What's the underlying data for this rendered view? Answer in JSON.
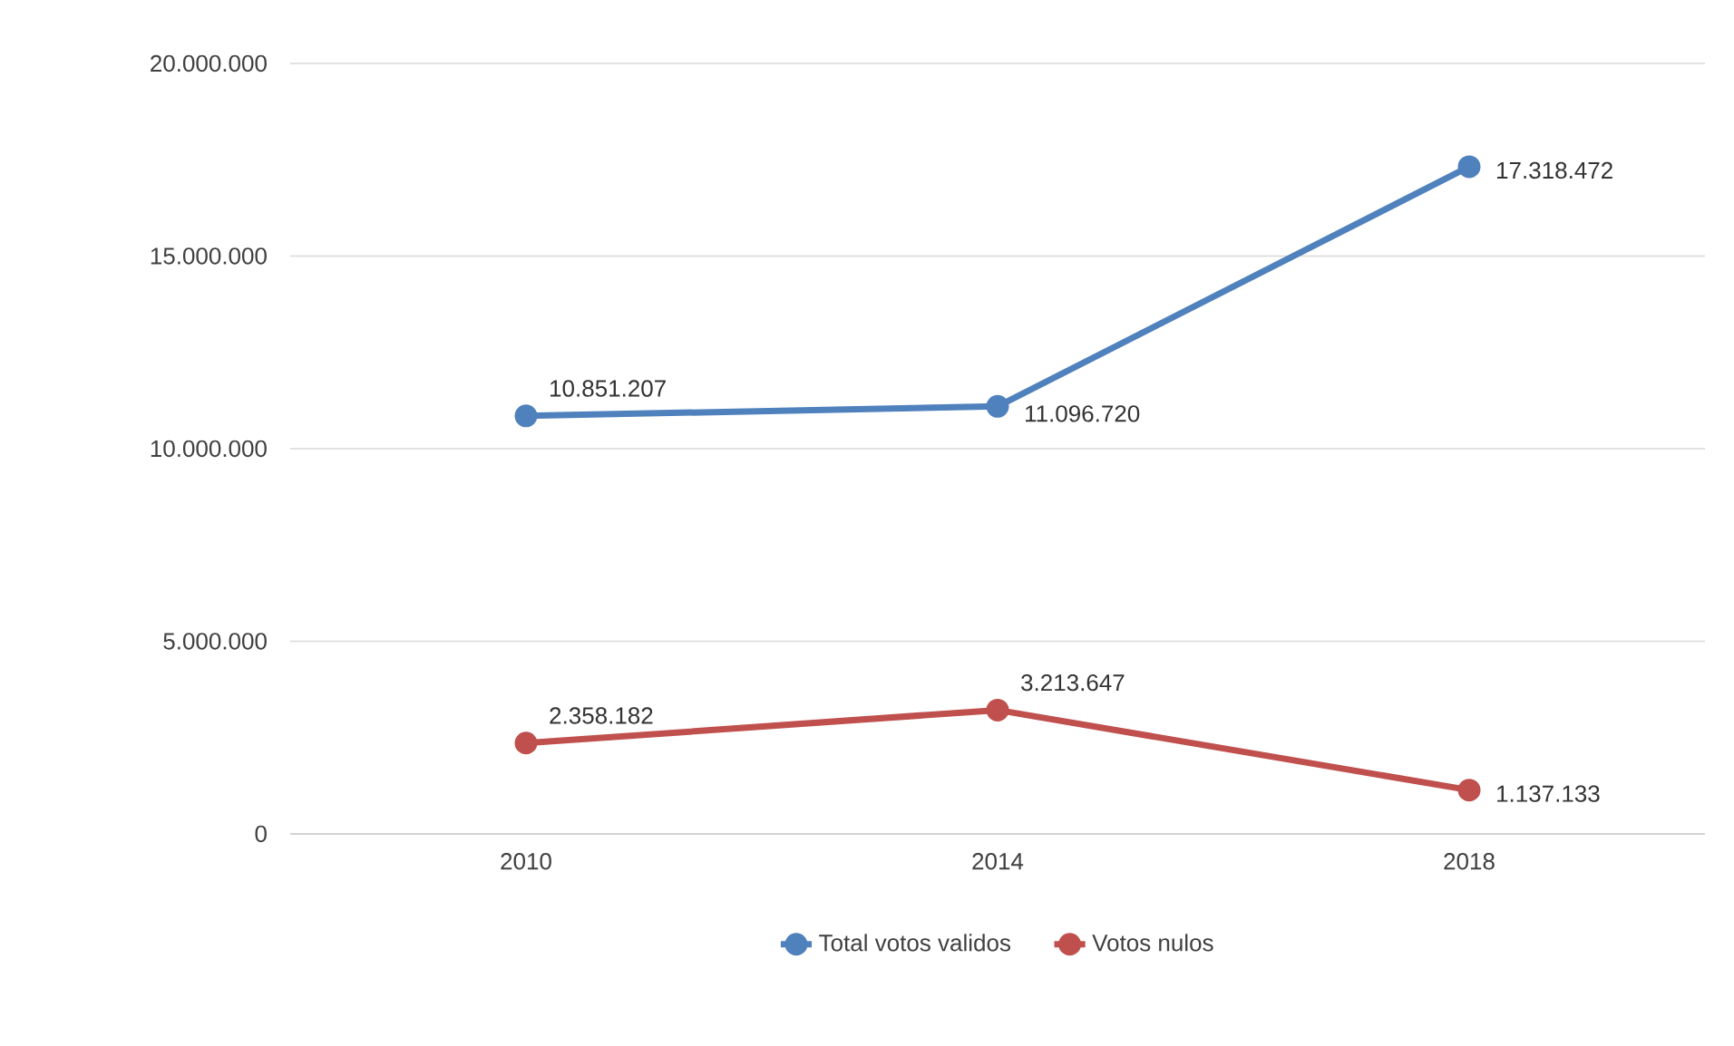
{
  "chart_data": {
    "type": "line",
    "categories": [
      "2010",
      "2014",
      "2018"
    ],
    "series": [
      {
        "name": "Total votos validos",
        "color": "#4f81bd",
        "values": [
          10851207,
          11096720,
          17318472
        ],
        "value_labels": [
          "10.851.207",
          "11.096.720",
          "17.318.472"
        ]
      },
      {
        "name": "Votos nulos",
        "color": "#c0504d",
        "values": [
          2358182,
          3213647,
          1137133
        ],
        "value_labels": [
          "2.358.182",
          "3.213.647",
          "1.137.133"
        ]
      }
    ],
    "ylim": [
      0,
      20000000
    ],
    "yticks": [
      {
        "value": 0,
        "label": "0"
      },
      {
        "value": 5000000,
        "label": "5.000.000"
      },
      {
        "value": 10000000,
        "label": "10.000.000"
      },
      {
        "value": 15000000,
        "label": "15.000.000"
      },
      {
        "value": 20000000,
        "label": "20.000.000"
      }
    ],
    "grid": "y",
    "legend": "bottom",
    "marker": "circle",
    "line_style": "solid"
  }
}
